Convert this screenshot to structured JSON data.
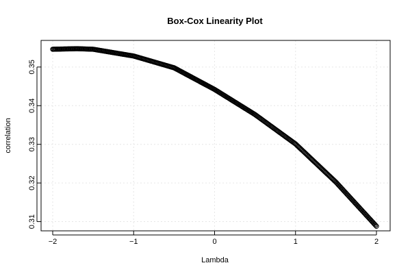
{
  "chart_data": {
    "type": "scatter",
    "title": "Box-Cox Linearity Plot",
    "xlabel": "Lambda",
    "ylabel": "correlation",
    "xlim": [
      -2,
      2
    ],
    "ylim": [
      0.3085,
      0.356
    ],
    "x_ticks": [
      -2,
      -1,
      0,
      1,
      2
    ],
    "x_tick_labels": [
      "−2",
      "−1",
      "0",
      "1",
      "2"
    ],
    "y_ticks": [
      0.31,
      0.32,
      0.33,
      0.34,
      0.35
    ],
    "y_tick_labels": [
      "0.31",
      "0.32",
      "0.33",
      "0.34",
      "0.35"
    ],
    "grid": true,
    "curve": {
      "x_start": -2,
      "x_end": 2,
      "n_points": 401,
      "anchor_x": [
        -2.0,
        -1.7,
        -1.5,
        -1.0,
        -0.5,
        0.0,
        0.5,
        1.0,
        1.5,
        2.0
      ],
      "anchor_y": [
        0.3546,
        0.35475,
        0.3546,
        0.35285,
        0.3498,
        0.3442,
        0.3377,
        0.3301,
        0.3202,
        0.3088
      ]
    }
  }
}
